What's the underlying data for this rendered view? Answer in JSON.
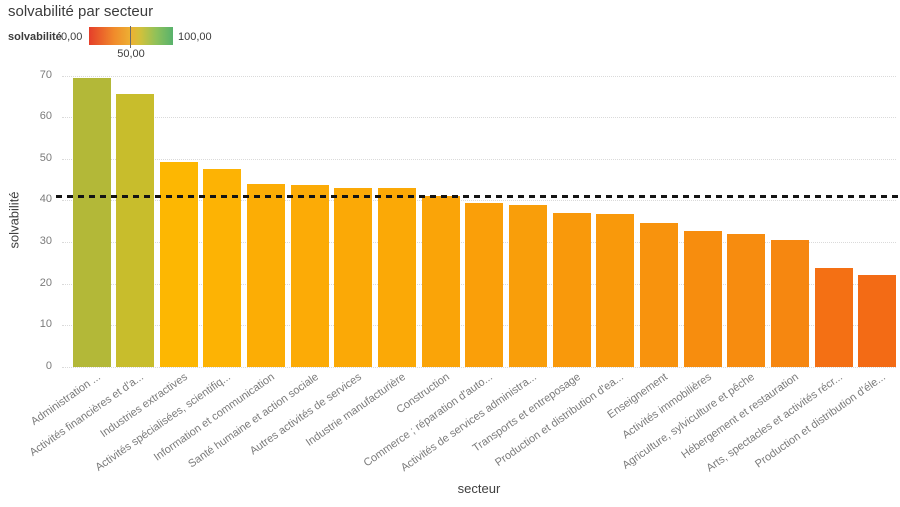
{
  "title": "solvabilité par secteur",
  "legend": {
    "label": "solvabilité",
    "min_label": "0,00",
    "mid_label": "50,00",
    "max_label": "100,00",
    "gradient_colors": [
      "#e53e2a",
      "#f08b2b",
      "#edb133",
      "#cfc13c",
      "#8fc15a",
      "#58b26c"
    ]
  },
  "chart_data": {
    "type": "bar",
    "title": "solvabilité par secteur",
    "xlabel": "secteur",
    "ylabel": "solvabilité",
    "ylim": [
      0,
      70
    ],
    "yticks": [
      "0",
      "10",
      "20",
      "30",
      "40",
      "50",
      "60",
      "70"
    ],
    "grid": "horizontal dotted",
    "legend_position": "top-left",
    "reference_line": {
      "value": 41,
      "style": "dashed",
      "color": "#141414"
    },
    "categories": [
      "Administration ...",
      "Activités financières et d'a...",
      "Industries extractives",
      "Activités spécialisées, scientifiq...",
      "Information et communication",
      "Santé humaine et action sociale",
      "Autres activités de services",
      "Industrie manufacturière",
      "Construction",
      "Commerce ; réparation d'auto...",
      "Activités de services administra...",
      "Transports et entreposage",
      "Production et distribution d'ea...",
      "Enseignement",
      "Activités immobilières",
      "Agriculture, sylviculture et pêche",
      "Hébergement et restauration",
      "Arts, spectacles et activités récr...",
      "Production et distribution d'éle..."
    ],
    "values": [
      69.5,
      65.5,
      49.2,
      47.5,
      44.0,
      43.7,
      43.0,
      42.9,
      41.0,
      39.4,
      38.9,
      37.0,
      36.8,
      34.5,
      32.6,
      32.0,
      30.6,
      23.8,
      22.0
    ],
    "bar_colors": [
      "#b3b838",
      "#c8bd2c",
      "#fdb702",
      "#fdb304",
      "#fcad05",
      "#fcab06",
      "#fba906",
      "#fba906",
      "#faa408",
      "#fa9f09",
      "#f99e0a",
      "#f9990b",
      "#f9990b",
      "#f8930d",
      "#f78d0e",
      "#f78c0f",
      "#f68710",
      "#f47014",
      "#f36b15"
    ]
  }
}
